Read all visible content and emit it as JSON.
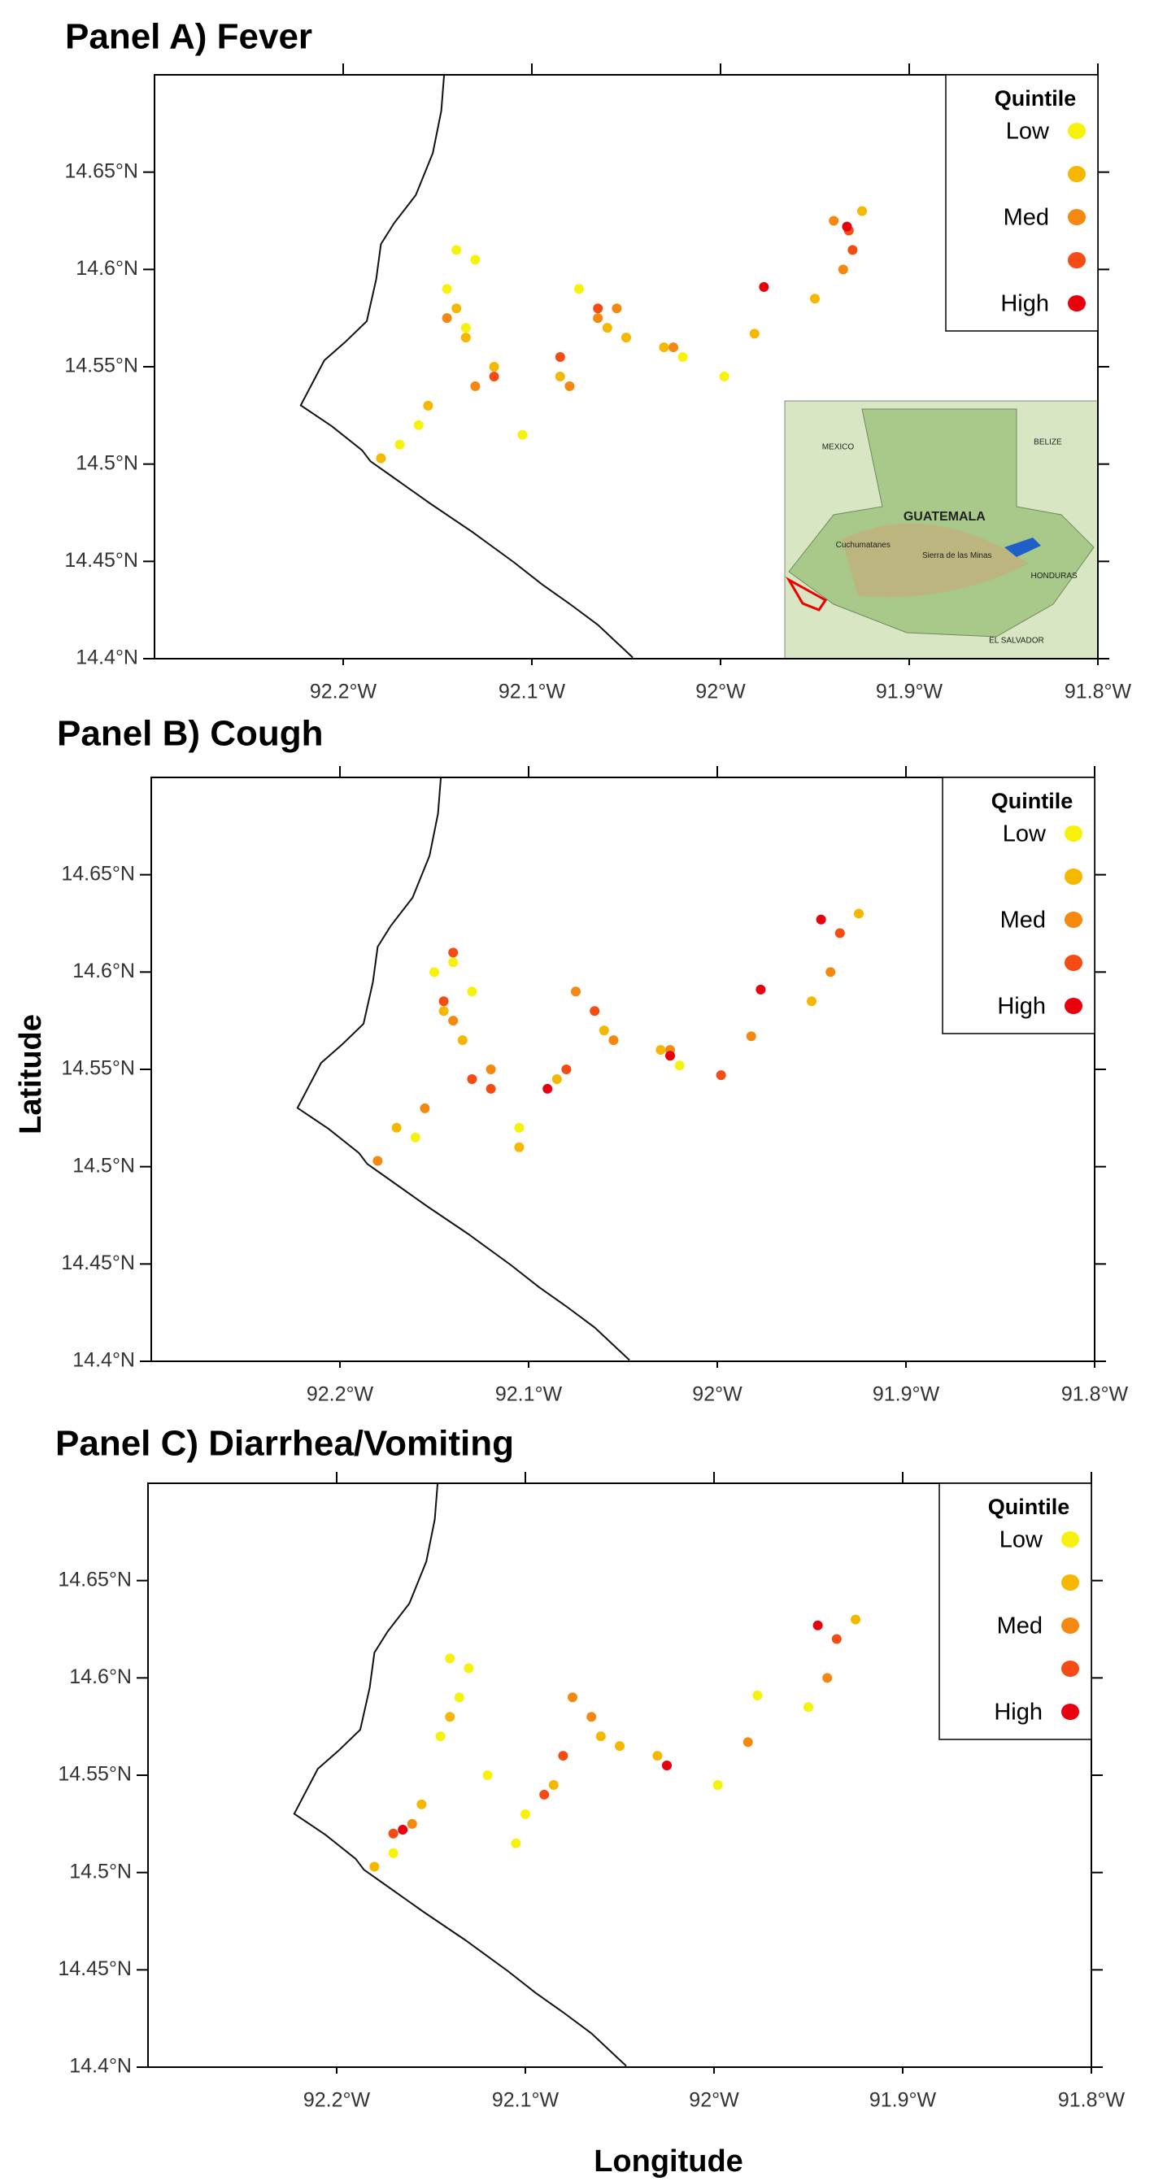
{
  "figure": {
    "xlabel": "Longitude",
    "ylabel": "Latitude"
  },
  "chart_data": [
    {
      "type": "scatter",
      "title": "Panel A) Fever",
      "legend_title": "Quintile",
      "xlim": [
        -92.3,
        -91.8
      ],
      "ylim": [
        14.4,
        14.7
      ],
      "xticks": [
        {
          "value": -92.2,
          "label": "92.2°W"
        },
        {
          "value": -92.1,
          "label": "92.1°W"
        },
        {
          "value": -92,
          "label": "92°W"
        },
        {
          "value": -91.9,
          "label": "91.9°W"
        },
        {
          "value": -91.8,
          "label": "91.8°W"
        }
      ],
      "yticks": [
        {
          "value": 14.4,
          "label": "14.4°N"
        },
        {
          "value": 14.45,
          "label": "14.45°N"
        },
        {
          "value": 14.5,
          "label": "14.5°N"
        },
        {
          "value": 14.55,
          "label": "14.55°N"
        },
        {
          "value": 14.6,
          "label": "14.6°N"
        },
        {
          "value": 14.65,
          "label": "14.65°N"
        }
      ],
      "inset": {
        "labels": [
          "MEXICO",
          "BELIZE",
          "GUATEMALA",
          "Cuchumatanes",
          "Sierra de las Minas",
          "HONDURAS",
          "EL SALVADOR"
        ]
      },
      "series": [
        {
          "name": "Low",
          "color": "#f7f20c",
          "x": [
            -92.14,
            -92.145,
            -92.13,
            -92.17,
            -92.16,
            -92.105,
            -92.02,
            -91.998,
            -92.135,
            -92.075
          ],
          "values": [
            14.61,
            14.59,
            14.605,
            14.51,
            14.52,
            14.515,
            14.555,
            14.545,
            14.57,
            14.59
          ]
        },
        {
          "color": "#f5b700",
          "x": [
            -92.14,
            -92.135,
            -92.155,
            -92.18,
            -92.085,
            -92.06,
            -92.05,
            -92.03,
            -91.982,
            -91.95,
            -91.925,
            -92.12
          ],
          "values": [
            14.58,
            14.565,
            14.53,
            14.503,
            14.545,
            14.57,
            14.565,
            14.56,
            14.567,
            14.585,
            14.63,
            14.55
          ]
        },
        {
          "name": "Med",
          "color": "#f58810",
          "x": [
            -92.145,
            -92.08,
            -92.065,
            -92.055,
            -92.025,
            -91.935,
            -91.94,
            -92.13
          ],
          "values": [
            14.575,
            14.54,
            14.575,
            14.58,
            14.56,
            14.6,
            14.625,
            14.54
          ]
        },
        {
          "color": "#f44c14",
          "x": [
            -92.12,
            -92.065,
            -91.93,
            -92.085,
            -91.932
          ],
          "values": [
            14.545,
            14.58,
            14.61,
            14.555,
            14.62
          ]
        },
        {
          "name": "High",
          "color": "#e8000c",
          "x": [
            -91.977,
            -91.933
          ],
          "values": [
            14.591,
            14.622
          ]
        }
      ]
    },
    {
      "type": "scatter",
      "title": "Panel B) Cough",
      "legend_title": "Quintile",
      "xlim": [
        -92.3,
        -91.8
      ],
      "ylim": [
        14.4,
        14.7
      ],
      "xticks": [
        {
          "value": -92.2,
          "label": "92.2°W"
        },
        {
          "value": -92.1,
          "label": "92.1°W"
        },
        {
          "value": -92,
          "label": "92°W"
        },
        {
          "value": -91.9,
          "label": "91.9°W"
        },
        {
          "value": -91.8,
          "label": "91.8°W"
        }
      ],
      "yticks": [
        {
          "value": 14.4,
          "label": "14.4°N"
        },
        {
          "value": 14.45,
          "label": "14.45°N"
        },
        {
          "value": 14.5,
          "label": "14.5°N"
        },
        {
          "value": 14.55,
          "label": "14.55°N"
        },
        {
          "value": 14.6,
          "label": "14.6°N"
        },
        {
          "value": 14.65,
          "label": "14.65°N"
        }
      ],
      "series": [
        {
          "name": "Low",
          "color": "#f7f20c",
          "x": [
            -92.14,
            -92.13,
            -92.105,
            -92.02,
            -92.15,
            -92.16
          ],
          "values": [
            14.605,
            14.59,
            14.52,
            14.552,
            14.6,
            14.515
          ]
        },
        {
          "color": "#f5b700",
          "x": [
            -92.145,
            -92.135,
            -92.17,
            -92.085,
            -92.06,
            -92.03,
            -91.95,
            -91.925,
            -92.105
          ],
          "values": [
            14.58,
            14.565,
            14.52,
            14.545,
            14.57,
            14.56,
            14.585,
            14.63,
            14.51
          ]
        },
        {
          "name": "Med",
          "color": "#f58810",
          "x": [
            -92.14,
            -92.155,
            -92.18,
            -92.075,
            -92.055,
            -92.025,
            -91.982,
            -91.94,
            -92.12
          ],
          "values": [
            14.575,
            14.53,
            14.503,
            14.59,
            14.565,
            14.56,
            14.567,
            14.6,
            14.55
          ]
        },
        {
          "color": "#f44c14",
          "x": [
            -92.145,
            -92.14,
            -92.13,
            -92.08,
            -92.065,
            -91.998,
            -91.935,
            -92.12
          ],
          "values": [
            14.585,
            14.61,
            14.545,
            14.55,
            14.58,
            14.547,
            14.62,
            14.54
          ]
        },
        {
          "name": "High",
          "color": "#e8000c",
          "x": [
            -91.977,
            -91.945,
            -92.09,
            -92.025
          ],
          "values": [
            14.591,
            14.627,
            14.54,
            14.557
          ]
        }
      ]
    },
    {
      "type": "scatter",
      "title": "Panel C) Diarrhea/Vomiting",
      "legend_title": "Quintile",
      "xlim": [
        -92.3,
        -91.8
      ],
      "ylim": [
        14.4,
        14.7
      ],
      "xticks": [
        {
          "value": -92.2,
          "label": "92.2°W"
        },
        {
          "value": -92.1,
          "label": "92.1°W"
        },
        {
          "value": -92,
          "label": "92°W"
        },
        {
          "value": -91.9,
          "label": "91.9°W"
        },
        {
          "value": -91.8,
          "label": "91.8°W"
        }
      ],
      "yticks": [
        {
          "value": 14.4,
          "label": "14.4°N"
        },
        {
          "value": 14.45,
          "label": "14.45°N"
        },
        {
          "value": 14.5,
          "label": "14.5°N"
        },
        {
          "value": 14.55,
          "label": "14.55°N"
        },
        {
          "value": 14.6,
          "label": "14.6°N"
        },
        {
          "value": 14.65,
          "label": "14.65°N"
        }
      ],
      "series": [
        {
          "name": "Low",
          "color": "#f7f20c",
          "x": [
            -92.14,
            -92.135,
            -92.13,
            -92.17,
            -92.105,
            -92.1,
            -91.998,
            -91.977,
            -91.95,
            -92.12,
            -92.145
          ],
          "values": [
            14.61,
            14.59,
            14.605,
            14.51,
            14.515,
            14.53,
            14.545,
            14.591,
            14.585,
            14.55,
            14.57
          ]
        },
        {
          "color": "#f5b700",
          "x": [
            -92.14,
            -92.085,
            -92.06,
            -92.05,
            -92.03,
            -91.925,
            -92.18,
            -92.155
          ],
          "values": [
            14.58,
            14.545,
            14.57,
            14.565,
            14.56,
            14.63,
            14.503,
            14.535
          ]
        },
        {
          "name": "Med",
          "color": "#f58810",
          "x": [
            -92.065,
            -92.075,
            -92.025,
            -91.982,
            -91.94,
            -92.16
          ],
          "values": [
            14.58,
            14.59,
            14.555,
            14.567,
            14.6,
            14.525
          ]
        },
        {
          "color": "#f44c14",
          "x": [
            -92.08,
            -91.935,
            -92.17,
            -92.09
          ],
          "values": [
            14.56,
            14.62,
            14.52,
            14.54
          ]
        },
        {
          "name": "High",
          "color": "#e8000c",
          "x": [
            -91.945,
            -92.165,
            -92.025
          ],
          "values": [
            14.627,
            14.522,
            14.555
          ]
        }
      ]
    }
  ]
}
